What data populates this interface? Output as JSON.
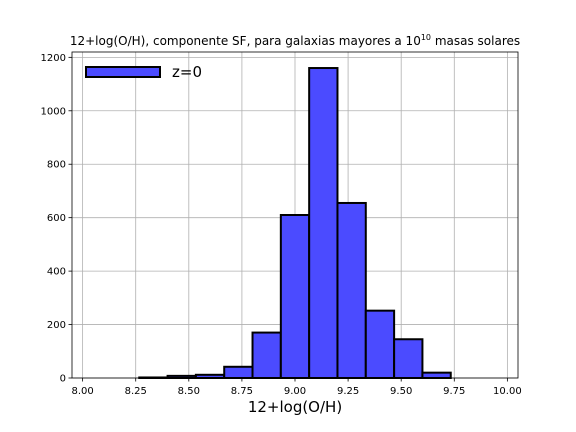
{
  "chart_data": {
    "type": "bar",
    "title": "12+log(O/H), componente SF, para galaxias mayores a 10",
    "title_superscript": "10",
    "title_suffix": " masas solares",
    "xlabel": "12+log(O/H)",
    "ylabel": "",
    "xlim": [
      7.95,
      10.05
    ],
    "ylim": [
      0,
      1220
    ],
    "x_ticks": [
      8.0,
      8.25,
      8.5,
      8.75,
      9.0,
      9.25,
      9.5,
      9.75,
      10.0
    ],
    "x_tick_labels": [
      "8.00",
      "8.25",
      "8.50",
      "8.75",
      "9.00",
      "9.25",
      "9.50",
      "9.75",
      "10.00"
    ],
    "y_ticks": [
      0,
      200,
      400,
      600,
      800,
      1000,
      1200
    ],
    "y_tick_labels": [
      "0",
      "200",
      "400",
      "600",
      "800",
      "1000",
      "1200"
    ],
    "bin_edges": [
      8.0,
      8.1333,
      8.2667,
      8.4,
      8.5333,
      8.6667,
      8.8,
      8.9333,
      9.0667,
      9.2,
      9.3333,
      9.4667,
      9.6,
      9.7333,
      9.8667,
      10.0
    ],
    "values": [
      0,
      0,
      2,
      8,
      12,
      42,
      170,
      610,
      1160,
      655,
      252,
      145,
      20,
      0,
      0
    ],
    "series": [
      {
        "name": "z=0",
        "color": "#4b4bff",
        "edge_color": "#000000"
      }
    ],
    "grid": true,
    "legend_position": "top-left"
  }
}
